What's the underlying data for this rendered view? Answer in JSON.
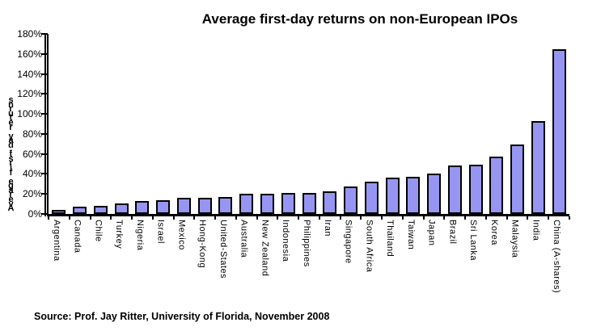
{
  "source": "Source: Prof. Jay Ritter, University of Florida, November 2008",
  "chart_data": {
    "type": "bar",
    "title": "Average first-day returns on non-European IPOs",
    "ylabel": "Average first-day returns",
    "xlabel": "",
    "ylim": [
      0,
      180
    ],
    "ytick_step": 20,
    "ytick_suffix": "%",
    "grid": false,
    "legend": false,
    "bar_color": "#9696F2",
    "bar_border_color": "#000000",
    "categories": [
      "Argentina",
      "Canada",
      "Chile",
      "Turkey",
      "Nigeria",
      "Israel",
      "Mexico",
      "Hong-Kong",
      "United-States",
      "Australia",
      "New Zealand",
      "Indonesia",
      "Philippines",
      "Iran",
      "Singapore",
      "South Africa",
      "Thailand",
      "Taiwan",
      "Japan",
      "Brazil",
      "Sri Lanka",
      "Korea",
      "Malaysia",
      "India",
      "China (A-shares)"
    ],
    "values": [
      4.4,
      7.1,
      8.4,
      10.8,
      12.7,
      13.8,
      15.9,
      15.9,
      16.9,
      19.8,
      20.3,
      21.1,
      21.2,
      22.4,
      27.4,
      32.7,
      36.6,
      37.2,
      40.1,
      48.7,
      48.9,
      57.4,
      69.6,
      92.7,
      164.5
    ]
  }
}
